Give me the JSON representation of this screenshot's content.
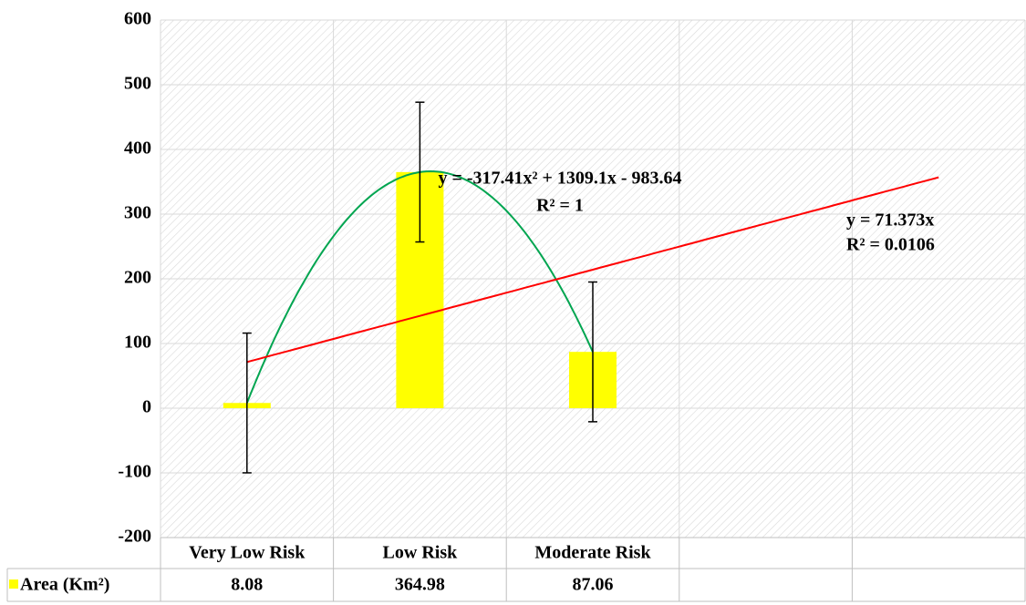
{
  "chart_data": {
    "type": "bar",
    "categories": [
      "Very Low Risk",
      "Low Risk",
      "Moderate Risk",
      null,
      null
    ],
    "series": [
      {
        "name": "Area (Km²)",
        "color": "#ffff00",
        "values": [
          8.08,
          364.98,
          87.06,
          null,
          null
        ],
        "errors": [
          108,
          108,
          108,
          null,
          null
        ]
      }
    ],
    "ylim": [
      -200,
      600
    ],
    "yticks": [
      -200,
      -100,
      0,
      100,
      200,
      300,
      400,
      500,
      600
    ],
    "grid": true,
    "trendlines": [
      {
        "kind": "polynomial",
        "color": "#00a550",
        "coefficients": [
          -317.41,
          1309.1,
          -983.64
        ],
        "range": [
          1,
          3
        ],
        "equation": "y = -317.41x² + 1309.1x - 983.64",
        "r2": "R² = 1"
      },
      {
        "kind": "linear",
        "color": "#ff0000",
        "coefficients": [
          0,
          71.373,
          0
        ],
        "range": [
          1,
          5
        ],
        "equation": "y = 71.373x",
        "r2": "R² = 0.0106"
      }
    ]
  }
}
